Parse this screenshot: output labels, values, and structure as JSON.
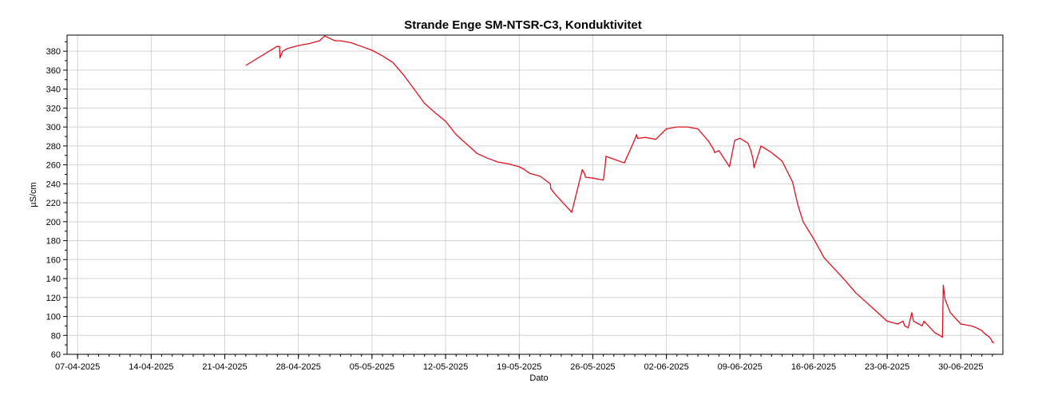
{
  "chart_data": {
    "type": "line",
    "title": "Strande Enge SM-NTSR-C3, Konduktivitet",
    "xlabel": "Dato",
    "ylabel": "µS/cm",
    "x_tick_labels": [
      "07-04-2025",
      "14-04-2025",
      "21-04-2025",
      "28-04-2025",
      "05-05-2025",
      "12-05-2025",
      "19-05-2025",
      "26-05-2025",
      "02-06-2025",
      "09-06-2025",
      "16-06-2025",
      "23-06-2025",
      "30-06-2025"
    ],
    "xlim": [
      "2025-04-06",
      "2025-07-04"
    ],
    "ylim": [
      60,
      397
    ],
    "y_ticks": [
      60,
      80,
      100,
      120,
      140,
      160,
      180,
      200,
      220,
      240,
      260,
      280,
      300,
      320,
      340,
      360,
      380
    ],
    "grid": true,
    "legend": "none",
    "series_color": "#e0111c",
    "series": [
      {
        "x": [
          "2025-04-23T00:00",
          "2025-04-25T23:00",
          "2025-04-26T05:00",
          "2025-04-26T06:00",
          "2025-04-26T12:00",
          "2025-04-27T00:00",
          "2025-04-28T00:00",
          "2025-04-29T00:00",
          "2025-04-30T00:00",
          "2025-04-30T12:00",
          "2025-05-01T12:00",
          "2025-05-02T00:00",
          "2025-05-03T00:00",
          "2025-05-04T00:00",
          "2025-05-05T00:00",
          "2025-05-06T00:00",
          "2025-05-07T00:00",
          "2025-05-08T00:00",
          "2025-05-09T00:00",
          "2025-05-10T00:00",
          "2025-05-11T00:00",
          "2025-05-12T00:00",
          "2025-05-13T00:00",
          "2025-05-14T00:00",
          "2025-05-15T00:00",
          "2025-05-16T00:00",
          "2025-05-17T00:00",
          "2025-05-18T00:00",
          "2025-05-19T00:00",
          "2025-05-19T12:00",
          "2025-05-20T00:00",
          "2025-05-21T00:00",
          "2025-05-21T23:00",
          "2025-05-22T00:00",
          "2025-05-22T12:00",
          "2025-05-23T00:00",
          "2025-05-24T00:00",
          "2025-05-25T00:00",
          "2025-05-25T06:00",
          "2025-05-25T07:00",
          "2025-05-26T00:00",
          "2025-05-27T00:00",
          "2025-05-27T04:00",
          "2025-05-27T06:00",
          "2025-05-28T00:00",
          "2025-05-29T00:00",
          "2025-05-30T00:00",
          "2025-05-30T04:00",
          "2025-05-30T06:00",
          "2025-05-31T00:00",
          "2025-06-01T00:00",
          "2025-06-02T00:00",
          "2025-06-03T00:00",
          "2025-06-04T00:00",
          "2025-06-05T00:00",
          "2025-06-06T00:00",
          "2025-06-06T12:00",
          "2025-06-06T14:00",
          "2025-06-07T00:00",
          "2025-06-08T00:00",
          "2025-06-08T12:00",
          "2025-06-09T00:00",
          "2025-06-09T18:00",
          "2025-06-10T00:00",
          "2025-06-10T06:00",
          "2025-06-10T08:00",
          "2025-06-11T00:00",
          "2025-06-12T00:00",
          "2025-06-13T00:00",
          "2025-06-14T00:00",
          "2025-06-14T12:00",
          "2025-06-15T00:00",
          "2025-06-16T00:00",
          "2025-06-17T00:00",
          "2025-06-18T00:00",
          "2025-06-19T00:00",
          "2025-06-20T00:00",
          "2025-06-21T00:00",
          "2025-06-22T00:00",
          "2025-06-23T00:00",
          "2025-06-24T00:00",
          "2025-06-24T12:00",
          "2025-06-24T16:00",
          "2025-06-25T00:00",
          "2025-06-25T08:00",
          "2025-06-25T12:00",
          "2025-06-26T00:00",
          "2025-06-26T08:00",
          "2025-06-26T12:00",
          "2025-06-27T00:00",
          "2025-06-27T12:00",
          "2025-06-28T00:00",
          "2025-06-28T06:00",
          "2025-06-28T08:00",
          "2025-06-28T12:00",
          "2025-06-29T00:00",
          "2025-06-30T00:00",
          "2025-07-01T00:00",
          "2025-07-01T12:00",
          "2025-07-02T00:00",
          "2025-07-02T06:00",
          "2025-07-02T12:00",
          "2025-07-02T18:00",
          "2025-07-02T22:00",
          "2025-07-03T00:00",
          "2025-07-03T04:00"
        ],
        "y": [
          365,
          385,
          385,
          373,
          380,
          383,
          386,
          388,
          391,
          396,
          391,
          391,
          389,
          385,
          381,
          375,
          368,
          355,
          340,
          325,
          315,
          306,
          292,
          282,
          272,
          267,
          263,
          261,
          258,
          255,
          251,
          248,
          240,
          235,
          228,
          222,
          210,
          255,
          250,
          247,
          246,
          244,
          258,
          269,
          266,
          262,
          287,
          292,
          288,
          289,
          287,
          298,
          300,
          300,
          298,
          285,
          276,
          273,
          275,
          258,
          286,
          288,
          283,
          276,
          266,
          257,
          280,
          273,
          264,
          242,
          218,
          200,
          182,
          162,
          150,
          138,
          125,
          115,
          105,
          95,
          92,
          95,
          90,
          88,
          104,
          95,
          92,
          90,
          95,
          89,
          83,
          80,
          78,
          133,
          118,
          104,
          92,
          90,
          88,
          85,
          82,
          80,
          78,
          75,
          73,
          72
        ]
      }
    ]
  }
}
